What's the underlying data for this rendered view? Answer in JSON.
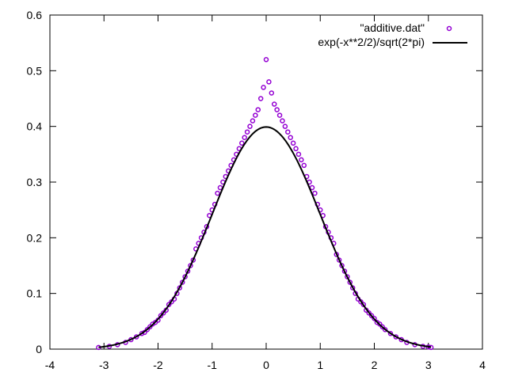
{
  "chart_data": {
    "type": "scatter",
    "title": "",
    "xlabel": "",
    "ylabel": "",
    "xlim": [
      -4,
      4
    ],
    "ylim": [
      0,
      0.6
    ],
    "xticks": [
      -4,
      -3,
      -2,
      -1,
      0,
      1,
      2,
      3,
      4
    ],
    "yticks": [
      0,
      0.1,
      0.2,
      0.3,
      0.4,
      0.5,
      0.6
    ],
    "xtick_labels": [
      "-4",
      "-3",
      "-2",
      "-1",
      "0",
      "1",
      "2",
      "3",
      "4"
    ],
    "ytick_labels": [
      "0",
      "0.1",
      "0.2",
      "0.3",
      "0.4",
      "0.5",
      "0.6"
    ],
    "grid": false,
    "legend_position": "top-right",
    "series": [
      {
        "name": "\"additive.dat\"",
        "kind": "scatter",
        "color": "#9400d3",
        "marker": "open-circle",
        "points": [
          [
            -3.1,
            0.003
          ],
          [
            -2.9,
            0.005
          ],
          [
            -2.75,
            0.008
          ],
          [
            -2.6,
            0.012
          ],
          [
            -2.5,
            0.017
          ],
          [
            -2.4,
            0.022
          ],
          [
            -2.3,
            0.028
          ],
          [
            -2.25,
            0.03
          ],
          [
            -2.2,
            0.035
          ],
          [
            -2.15,
            0.04
          ],
          [
            -2.1,
            0.045
          ],
          [
            -2.05,
            0.048
          ],
          [
            -2.0,
            0.052
          ],
          [
            -1.95,
            0.06
          ],
          [
            -1.9,
            0.065
          ],
          [
            -1.85,
            0.07
          ],
          [
            -1.8,
            0.08
          ],
          [
            -1.75,
            0.085
          ],
          [
            -1.7,
            0.09
          ],
          [
            -1.65,
            0.1
          ],
          [
            -1.6,
            0.11
          ],
          [
            -1.55,
            0.12
          ],
          [
            -1.5,
            0.13
          ],
          [
            -1.45,
            0.14
          ],
          [
            -1.4,
            0.15
          ],
          [
            -1.35,
            0.16
          ],
          [
            -1.3,
            0.18
          ],
          [
            -1.25,
            0.19
          ],
          [
            -1.2,
            0.2
          ],
          [
            -1.15,
            0.21
          ],
          [
            -1.1,
            0.22
          ],
          [
            -1.05,
            0.24
          ],
          [
            -1.0,
            0.25
          ],
          [
            -0.95,
            0.26
          ],
          [
            -0.9,
            0.28
          ],
          [
            -0.85,
            0.29
          ],
          [
            -0.8,
            0.3
          ],
          [
            -0.75,
            0.31
          ],
          [
            -0.7,
            0.32
          ],
          [
            -0.65,
            0.33
          ],
          [
            -0.6,
            0.34
          ],
          [
            -0.55,
            0.35
          ],
          [
            -0.5,
            0.36
          ],
          [
            -0.45,
            0.37
          ],
          [
            -0.4,
            0.38
          ],
          [
            -0.35,
            0.39
          ],
          [
            -0.3,
            0.4
          ],
          [
            -0.25,
            0.41
          ],
          [
            -0.2,
            0.42
          ],
          [
            -0.15,
            0.43
          ],
          [
            -0.1,
            0.45
          ],
          [
            -0.05,
            0.47
          ],
          [
            0.0,
            0.52
          ],
          [
            0.05,
            0.48
          ],
          [
            0.1,
            0.46
          ],
          [
            0.15,
            0.44
          ],
          [
            0.2,
            0.43
          ],
          [
            0.25,
            0.42
          ],
          [
            0.3,
            0.41
          ],
          [
            0.35,
            0.4
          ],
          [
            0.4,
            0.39
          ],
          [
            0.45,
            0.38
          ],
          [
            0.5,
            0.37
          ],
          [
            0.55,
            0.36
          ],
          [
            0.6,
            0.35
          ],
          [
            0.65,
            0.34
          ],
          [
            0.7,
            0.33
          ],
          [
            0.75,
            0.31
          ],
          [
            0.8,
            0.3
          ],
          [
            0.85,
            0.29
          ],
          [
            0.9,
            0.28
          ],
          [
            0.95,
            0.26
          ],
          [
            1.0,
            0.25
          ],
          [
            1.05,
            0.24
          ],
          [
            1.1,
            0.22
          ],
          [
            1.15,
            0.21
          ],
          [
            1.2,
            0.2
          ],
          [
            1.25,
            0.19
          ],
          [
            1.3,
            0.17
          ],
          [
            1.35,
            0.16
          ],
          [
            1.4,
            0.15
          ],
          [
            1.45,
            0.14
          ],
          [
            1.5,
            0.13
          ],
          [
            1.55,
            0.12
          ],
          [
            1.6,
            0.11
          ],
          [
            1.65,
            0.1
          ],
          [
            1.7,
            0.09
          ],
          [
            1.75,
            0.085
          ],
          [
            1.8,
            0.08
          ],
          [
            1.85,
            0.07
          ],
          [
            1.9,
            0.065
          ],
          [
            1.95,
            0.06
          ],
          [
            2.0,
            0.055
          ],
          [
            2.05,
            0.048
          ],
          [
            2.1,
            0.045
          ],
          [
            2.15,
            0.04
          ],
          [
            2.2,
            0.035
          ],
          [
            2.3,
            0.028
          ],
          [
            2.4,
            0.022
          ],
          [
            2.5,
            0.017
          ],
          [
            2.6,
            0.012
          ],
          [
            2.75,
            0.008
          ],
          [
            2.9,
            0.005
          ],
          [
            3.0,
            0.004
          ],
          [
            3.05,
            0.003
          ]
        ]
      },
      {
        "name": "exp(-x**2/2)/sqrt(2*pi)",
        "kind": "line",
        "color": "#000000",
        "function": "standard-normal-pdf",
        "x_range": [
          -3.1,
          3.05
        ]
      }
    ]
  }
}
